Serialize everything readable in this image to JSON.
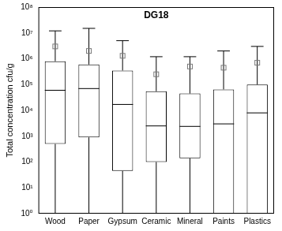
{
  "chart_data": {
    "type": "box",
    "title": "DG18",
    "y_label": "Total concentration cfu/g",
    "categories": [
      "Wood",
      "Paper",
      "Gypsum",
      "Ceramic",
      "Mineral",
      "Paints",
      "Plastics"
    ],
    "whisker_low": [
      1,
      1,
      1,
      1,
      1,
      1,
      1
    ],
    "q1": [
      500,
      900,
      45,
      100,
      140,
      1,
      1
    ],
    "median": [
      60000,
      70000,
      17000,
      2500,
      2400,
      3000,
      8000
    ],
    "q3": [
      800000,
      600000,
      350000,
      55000,
      45000,
      65000,
      100000
    ],
    "whisker_high": [
      12000000,
      15000000,
      5000000,
      1200000,
      1200000,
      2000000,
      3000000
    ],
    "mean": [
      3000000,
      2000000,
      1300000,
      250000,
      500000,
      450000,
      700000
    ],
    "color": "#000000",
    "log": "y",
    "grid": false,
    "ylim": [
      1,
      100000000
    ],
    "yticks": [
      {
        "value": 1,
        "label": "10⁰"
      },
      {
        "value": 10,
        "label": "10¹"
      },
      {
        "value": 100,
        "label": "10²"
      },
      {
        "value": 1000,
        "label": "10³"
      },
      {
        "value": 10000,
        "label": "10⁴"
      },
      {
        "value": 100000,
        "label": "10⁵"
      },
      {
        "value": 1000000,
        "label": "10⁶"
      },
      {
        "value": 10000000,
        "label": "10⁷"
      },
      {
        "value": 100000000,
        "label": "10⁸"
      }
    ]
  }
}
